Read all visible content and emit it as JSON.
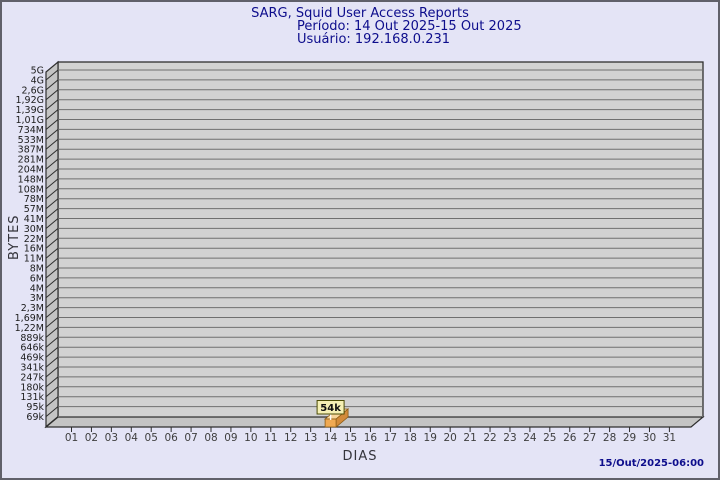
{
  "window": {
    "footer_timestamp": "15/Out/2025-06:00"
  },
  "chart_data": {
    "type": "bar",
    "title": "SARG, Squid User Access Reports",
    "period_line": "Período: 14 Out 2025-15 Out 2025",
    "user_line": "Usuário: 192.168.0.231",
    "xlabel": "DIAS",
    "ylabel": "BYTES",
    "legend": "none",
    "grid": "horizontal gridlines on 3D back wall",
    "y_scale": "geometric steps (ratio ~1.37), top 5G down to 69k",
    "y_tick_labels": [
      "5G",
      "4G",
      "2,6G",
      "1,92G",
      "1,39G",
      "1,01G",
      "734M",
      "533M",
      "387M",
      "281M",
      "204M",
      "148M",
      "108M",
      "78M",
      "57M",
      "41M",
      "30M",
      "22M",
      "16M",
      "11M",
      "8M",
      "6M",
      "4M",
      "3M",
      "2,3M",
      "1,69M",
      "1,22M",
      "889k",
      "646k",
      "469k",
      "341k",
      "247k",
      "180k",
      "131k",
      "95k",
      "69k"
    ],
    "x_categories": [
      "01",
      "02",
      "03",
      "04",
      "05",
      "06",
      "07",
      "08",
      "09",
      "10",
      "11",
      "12",
      "13",
      "14",
      "15",
      "16",
      "17",
      "18",
      "19",
      "20",
      "21",
      "22",
      "23",
      "24",
      "25",
      "26",
      "27",
      "28",
      "29",
      "30",
      "31"
    ],
    "bars": [
      {
        "day": "14",
        "value_label": "54k",
        "value_bytes": 54000
      }
    ]
  },
  "colors": {
    "background": "#e4e4f6",
    "window_border": "#60606a",
    "title_text": "#0d0d8c",
    "plot_bg": "#d2d2d2",
    "wall": "#c4c4c4",
    "grid": "#6f6f6f",
    "edge": "#2e2e2e",
    "tick_text": "#1c1c1c",
    "xtick_text": "#3f3f3f",
    "bar_top": "#f7d59a",
    "bar_front": "#f0a952",
    "bar_side": "#d28a3a",
    "bar_edge": "#8a5a14",
    "callout_bg": "#f5f0b4",
    "callout_border": "#4c4c06"
  }
}
